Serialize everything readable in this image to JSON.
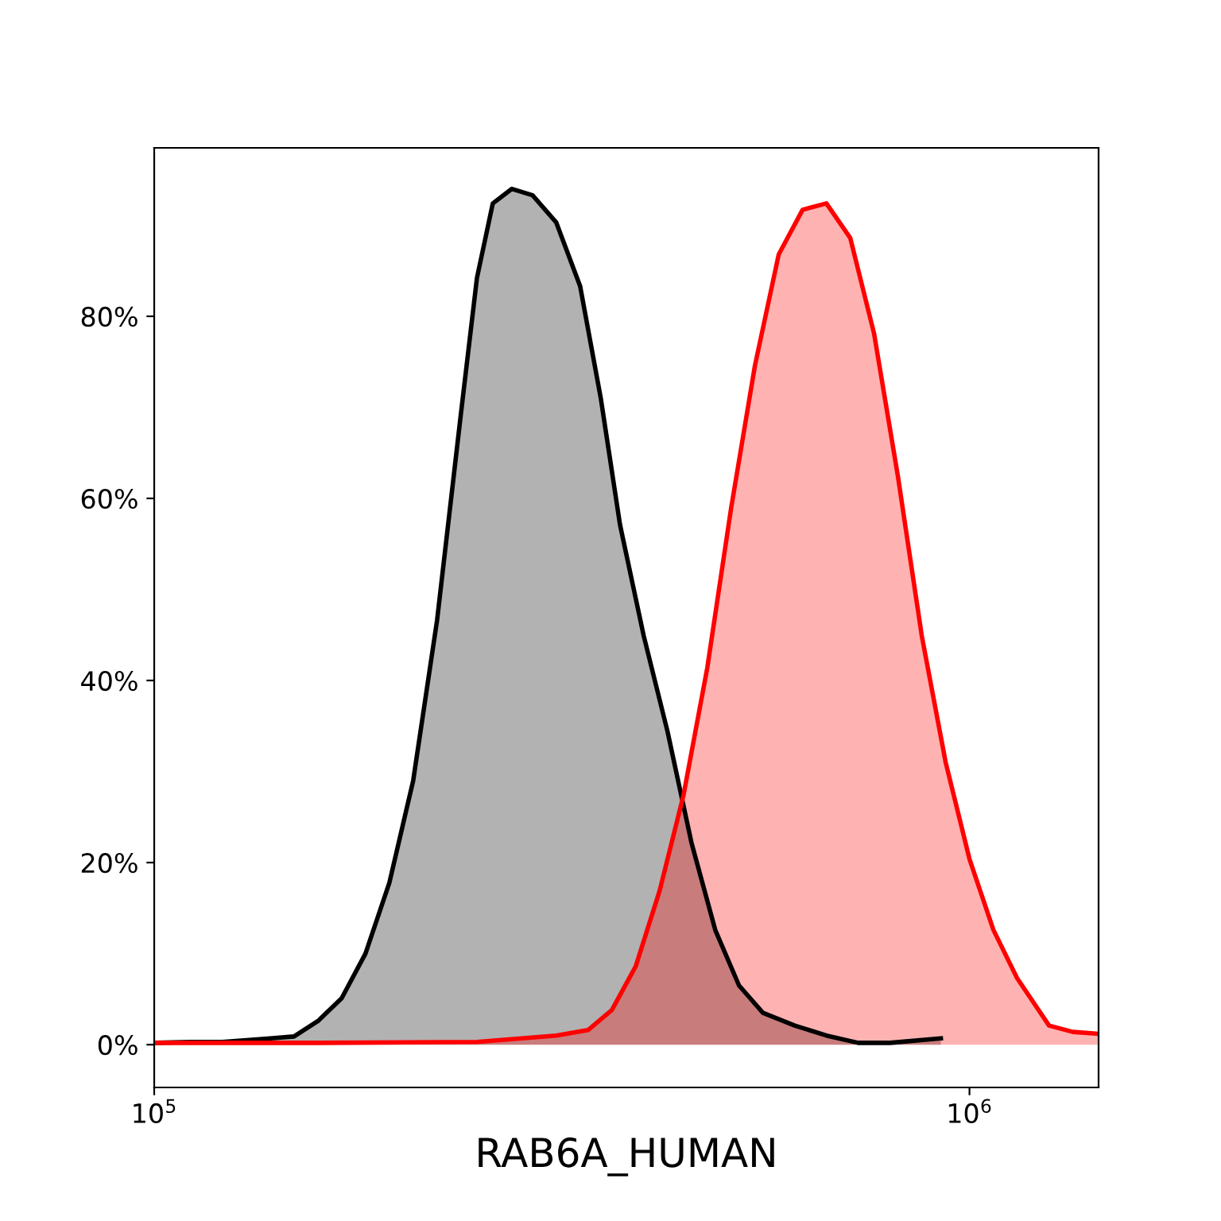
{
  "chart_data": {
    "type": "area",
    "xlabel": "RAB6A_HUMAN",
    "log": "x",
    "xlim": [
      100000,
      1440000
    ],
    "xticks": [
      {
        "value": 100000,
        "label": "10$^{5}$"
      },
      {
        "value": 1000000,
        "label": "10$^{6}$"
      }
    ],
    "ylim": [
      -4.7,
      98.5
    ],
    "yticks": [
      {
        "value": 0,
        "label": "0%"
      },
      {
        "value": 20,
        "label": "20%"
      },
      {
        "value": 40,
        "label": "40%"
      },
      {
        "value": 60,
        "label": "60%"
      },
      {
        "value": 80,
        "label": "80%"
      }
    ],
    "grid": false,
    "legend": false,
    "series": [
      {
        "color": "#000000",
        "x": [
          100000,
          110900,
          121300,
          138800,
          148400,
          158800,
          169800,
          181600,
          194300,
          207800,
          222300,
          237800,
          248800,
          260200,
          274600,
          291100,
          311300,
          333000,
          353000,
          372700,
          398500,
          426200,
          456000,
          487700,
          521600,
          558000,
          610400,
          667600,
          730200,
          798900,
          922400
        ],
        "values": [
          0.2,
          0.3,
          0.3,
          0.7,
          0.9,
          2.6,
          5.1,
          10,
          17.8,
          29,
          46.6,
          69.3,
          84.2,
          92.4,
          94,
          93.3,
          90.3,
          83.3,
          71,
          57.1,
          44.9,
          34.4,
          22.2,
          12.6,
          6.5,
          3.5,
          2.1,
          1,
          0.2,
          0.2,
          0.7
        ]
      },
      {
        "color": "#ff0000",
        "x": [
          100000,
          158800,
          248800,
          311300,
          340500,
          364200,
          389600,
          416800,
          445900,
          476900,
          510000,
          545600,
          583500,
          624200,
          667600,
          714100,
          763800,
          817100,
          874000,
          935000,
          1000000,
          1070000,
          1144000,
          1252000,
          1339000,
          1439000
        ],
        "values": [
          0.2,
          0.2,
          0.3,
          1,
          1.6,
          3.8,
          8.6,
          16.9,
          27.4,
          41.4,
          58.9,
          74.6,
          86.8,
          91.7,
          92.4,
          88.6,
          78.1,
          62.4,
          44.9,
          31,
          20.4,
          12.6,
          7.3,
          2.1,
          1.4,
          1.2
        ]
      }
    ]
  }
}
